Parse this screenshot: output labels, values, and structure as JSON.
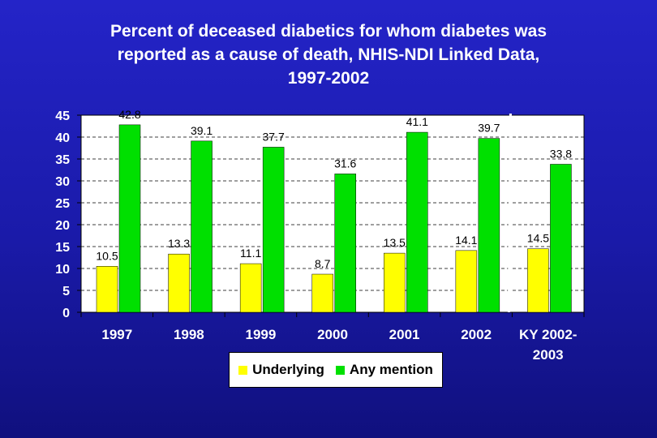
{
  "chart_data": {
    "type": "bar",
    "title_lines": [
      "Percent of deceased diabetics for whom diabetes was",
      "reported as a cause of death, NHIS-NDI Linked Data,",
      "1997-2002"
    ],
    "categories": [
      [
        "1997"
      ],
      [
        "1998"
      ],
      [
        "1999"
      ],
      [
        "2000"
      ],
      [
        "2001"
      ],
      [
        "2002"
      ],
      [
        "KY 2002-",
        "2003"
      ]
    ],
    "series": [
      {
        "name": "Underlying",
        "color": "#ffff00",
        "values": [
          10.5,
          13.3,
          11.1,
          8.7,
          13.5,
          14.1,
          14.5
        ]
      },
      {
        "name": "Any mention",
        "color": "#00e000",
        "values": [
          42.8,
          39.1,
          37.7,
          31.6,
          41.1,
          39.7,
          33.8
        ]
      }
    ],
    "ylim": [
      0,
      45
    ],
    "yticks": [
      0,
      5,
      10,
      15,
      20,
      25,
      30,
      35,
      40,
      45
    ],
    "gridlines": "dashed",
    "legend_position": "bottom-center",
    "separator_before_category": 6
  }
}
